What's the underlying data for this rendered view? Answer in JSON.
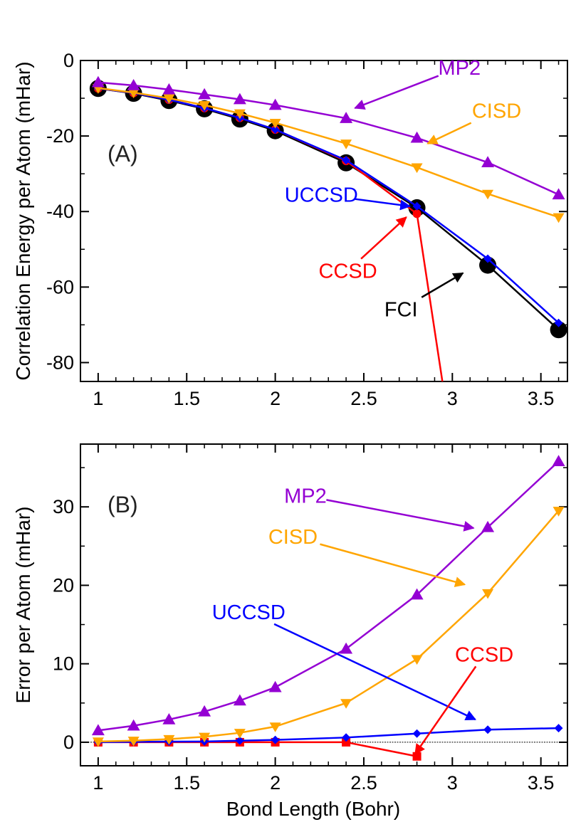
{
  "colors": {
    "MP2": "#9400D3",
    "CISD": "#FFA500",
    "UCCSD": "#0000FF",
    "CCSD": "#FF0000",
    "FCI": "#000000"
  },
  "chart_data": [
    {
      "type": "line",
      "panel_label": "(A)",
      "title": "",
      "xlabel": "",
      "ylabel": "Correlation Energy per Atom (mHar)",
      "xlim": [
        0.9,
        3.65
      ],
      "ylim": [
        -85,
        0
      ],
      "xticks": [
        "1",
        "1.5",
        "2",
        "2.5",
        "3",
        "3.5"
      ],
      "yticks": [
        "0",
        "-20",
        "-40",
        "-60",
        "-80"
      ],
      "grid": false,
      "series": [
        {
          "name": "MP2",
          "marker": "triangle-up",
          "x": [
            1.0,
            1.2,
            1.4,
            1.6,
            1.8,
            2.0,
            2.4,
            2.8,
            3.2,
            3.6
          ],
          "y": [
            -5.8,
            -6.6,
            -7.7,
            -9.0,
            -10.3,
            -11.8,
            -15.3,
            -20.5,
            -27.0,
            -35.5
          ]
        },
        {
          "name": "CISD",
          "marker": "triangle-down",
          "x": [
            1.0,
            1.2,
            1.4,
            1.6,
            1.8,
            2.0,
            2.4,
            2.8,
            3.2,
            3.6
          ],
          "y": [
            -7.3,
            -8.5,
            -10.0,
            -11.8,
            -14.0,
            -16.5,
            -22.0,
            -28.3,
            -35.3,
            -41.5
          ]
        },
        {
          "name": "UCCSD",
          "marker": "diamond",
          "x": [
            1.0,
            1.2,
            1.4,
            1.6,
            1.8,
            2.0,
            2.4,
            2.8,
            3.2,
            3.6
          ],
          "y": [
            -7.4,
            -8.6,
            -10.4,
            -12.6,
            -15.2,
            -18.3,
            -26.4,
            -38.6,
            -52.5,
            -69.5
          ]
        },
        {
          "name": "CCSD",
          "marker": "circle",
          "x": [
            1.0,
            1.2,
            1.4,
            1.6,
            1.8,
            2.0,
            2.4,
            2.8,
            2.96
          ],
          "y": [
            -7.4,
            -8.6,
            -10.4,
            -12.6,
            -15.2,
            -18.3,
            -26.6,
            -40.6,
            -90.0
          ]
        },
        {
          "name": "FCI",
          "marker": "big-circle",
          "x": [
            1.0,
            1.2,
            1.4,
            1.6,
            1.8,
            2.0,
            2.4,
            2.8,
            3.2,
            3.6
          ],
          "y": [
            -7.4,
            -8.7,
            -10.6,
            -12.8,
            -15.5,
            -18.6,
            -27.1,
            -39.0,
            -54.2,
            -71.3
          ]
        }
      ],
      "annotations": [
        {
          "text": "MP2",
          "series": "MP2",
          "label_x": 3.04,
          "label_y": -3.8,
          "tip_x": 2.45,
          "tip_y": -12.6
        },
        {
          "text": "CISD",
          "series": "CISD",
          "label_x": 3.25,
          "label_y": -15.2,
          "tip_x": 2.86,
          "tip_y": -22.0
        },
        {
          "text": "UCCSD",
          "series": "UCCSD",
          "label_x": 2.26,
          "label_y": -37.4,
          "tip_x": 2.76,
          "tip_y": -38.6
        },
        {
          "text": "CCSD",
          "series": "CCSD",
          "label_x": 2.41,
          "label_y": -57.6,
          "tip_x": 2.74,
          "tip_y": -41.5
        },
        {
          "text": "FCI",
          "series": "FCI",
          "label_x": 2.71,
          "label_y": -67.8,
          "tip_x": 3.06,
          "tip_y": -56.3
        }
      ]
    },
    {
      "type": "line",
      "panel_label": "(B)",
      "title": "",
      "xlabel": "Bond Length (Bohr)",
      "ylabel": "Error per Atom (mHar)",
      "xlim": [
        0.9,
        3.65
      ],
      "ylim": [
        -3,
        38
      ],
      "xticks": [
        "1",
        "1.5",
        "2",
        "2.5",
        "3",
        "3.5"
      ],
      "yticks": [
        "0",
        "10",
        "20",
        "30"
      ],
      "grid": false,
      "zero_line": true,
      "series": [
        {
          "name": "MP2",
          "marker": "triangle-up",
          "x": [
            1.0,
            1.2,
            1.4,
            1.6,
            1.8,
            2.0,
            2.4,
            2.8,
            3.2,
            3.6
          ],
          "y": [
            1.5,
            2.1,
            2.9,
            3.9,
            5.3,
            7.0,
            11.9,
            18.8,
            27.4,
            35.8
          ]
        },
        {
          "name": "CISD",
          "marker": "triangle-down",
          "x": [
            1.0,
            1.2,
            1.4,
            1.6,
            1.8,
            2.0,
            2.4,
            2.8,
            3.2,
            3.6
          ],
          "y": [
            0.1,
            0.2,
            0.4,
            0.7,
            1.2,
            2.0,
            5.0,
            10.6,
            19.0,
            29.5
          ]
        },
        {
          "name": "UCCSD",
          "marker": "diamond",
          "x": [
            1.0,
            1.2,
            1.4,
            1.6,
            1.8,
            2.0,
            2.4,
            2.8,
            3.2,
            3.6
          ],
          "y": [
            0.0,
            0.05,
            0.08,
            0.1,
            0.2,
            0.3,
            0.6,
            1.1,
            1.6,
            1.8
          ]
        },
        {
          "name": "CCSD",
          "marker": "square",
          "x": [
            1.0,
            1.2,
            1.4,
            1.6,
            1.8,
            2.0,
            2.4,
            2.8
          ],
          "y": [
            0.0,
            0.0,
            0.0,
            0.0,
            0.0,
            0.0,
            0.0,
            -1.8
          ]
        }
      ],
      "annotations": [
        {
          "text": "MP2",
          "series": "MP2",
          "label_x": 2.17,
          "label_y": 30.5,
          "tip_x": 3.12,
          "tip_y": 27.3
        },
        {
          "text": "CISD",
          "series": "CISD",
          "label_x": 2.1,
          "label_y": 25.3,
          "tip_x": 3.07,
          "tip_y": 20.1
        },
        {
          "text": "UCCSD",
          "series": "UCCSD",
          "label_x": 1.85,
          "label_y": 15.7,
          "tip_x": 3.13,
          "tip_y": 2.9
        },
        {
          "text": "CCSD",
          "series": "CCSD",
          "label_x": 3.18,
          "label_y": 10.3,
          "tip_x": 2.79,
          "tip_y": -1.5
        }
      ]
    }
  ]
}
